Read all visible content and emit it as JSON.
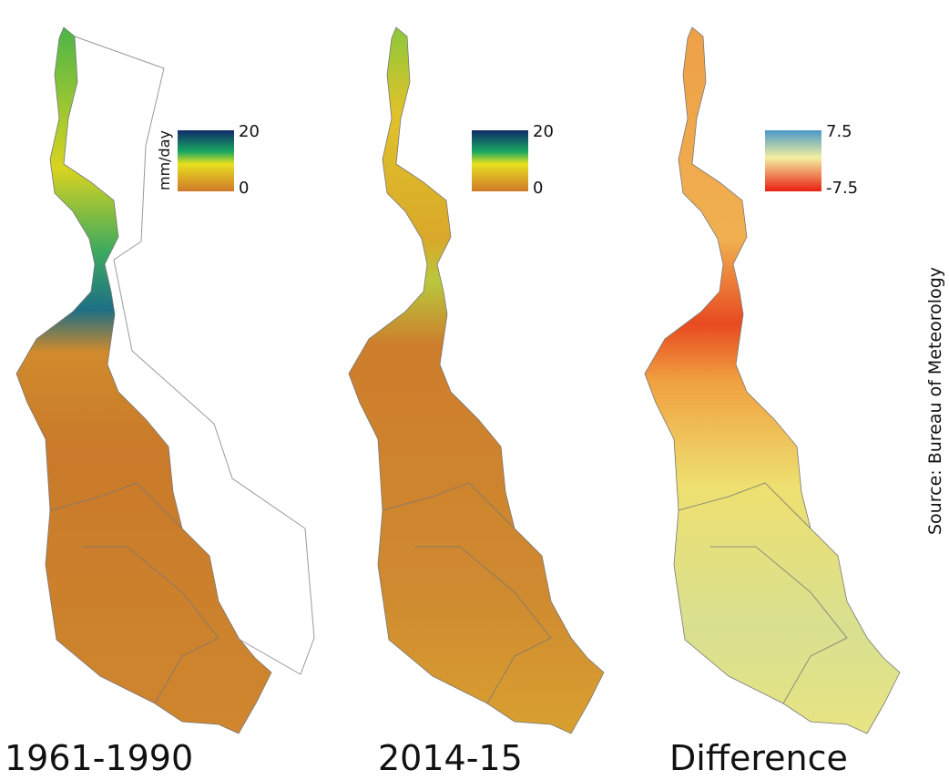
{
  "panels": [
    {
      "label": "1961-1990",
      "legend": {
        "unit": "mm/day",
        "max": "20",
        "min": "0"
      }
    },
    {
      "label": "2014-15",
      "legend": {
        "max": "20",
        "min": "0"
      }
    },
    {
      "label": "Difference",
      "legend": {
        "max": "7.5",
        "min": "-7.5"
      }
    }
  ],
  "source": "Source: Bureau of Meteorology"
}
